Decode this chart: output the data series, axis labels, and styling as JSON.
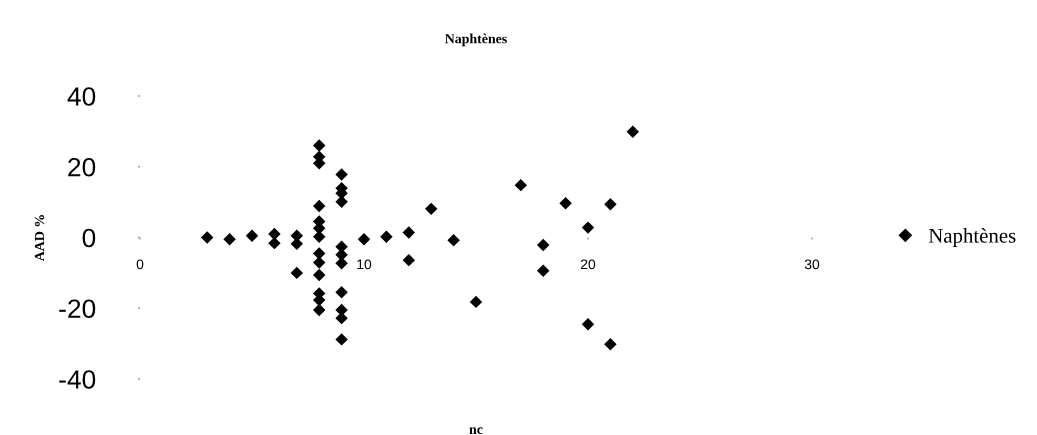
{
  "chart_data": {
    "type": "scatter",
    "title": "Naphtènes",
    "xlabel": "nc",
    "ylabel": "AAD %",
    "xlim": [
      0,
      30
    ],
    "ylim": [
      -40,
      40
    ],
    "xticks": [
      0,
      10,
      20,
      30
    ],
    "yticks": [
      -40,
      -20,
      0,
      20,
      40
    ],
    "grid": false,
    "legend": "right",
    "marker": "diamond",
    "series": [
      {
        "name": "Naphtènes",
        "color": "#000000",
        "x": [
          3,
          4,
          5,
          6,
          6,
          7,
          7,
          7,
          8,
          8,
          8,
          8,
          8,
          8,
          8,
          8,
          8,
          8,
          8,
          8,
          8,
          9,
          9,
          9,
          9,
          9,
          9,
          9,
          9,
          9,
          9,
          9,
          10,
          11,
          12,
          12,
          13,
          14,
          15,
          17,
          18,
          18,
          19,
          20,
          20,
          21,
          21,
          22
        ],
        "values": [
          0,
          -0.5,
          0.5,
          1,
          -1.6,
          0.5,
          -1.8,
          -10,
          26,
          22.8,
          21,
          8.9,
          4.5,
          2.6,
          0.2,
          -4.5,
          -7.1,
          -10.6,
          -15.8,
          -17.7,
          -20.5,
          17.8,
          13.9,
          12.5,
          10.1,
          -2.6,
          -4.9,
          -7.3,
          -15.5,
          -20.5,
          -22.8,
          -28.8,
          -0.5,
          0.2,
          1.4,
          -6.4,
          8.1,
          -0.8,
          -18.2,
          14.8,
          -2.1,
          -9.4,
          9.7,
          2.8,
          -24.5,
          9.4,
          -30.2,
          29.9
        ]
      }
    ]
  }
}
